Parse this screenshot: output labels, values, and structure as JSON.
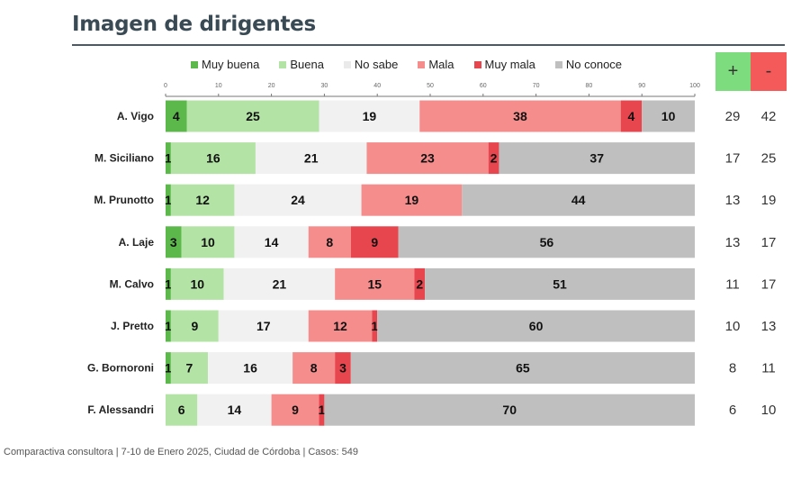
{
  "chart_data": {
    "type": "bar",
    "stacked": true,
    "orientation": "horizontal",
    "title": "Imagen de dirigentes",
    "categories": [
      "A. Vigo",
      "M. Siciliano",
      "M. Prunotto",
      "A. Laje",
      "M. Calvo",
      "J. Pretto",
      "G. Bornoroni",
      "F. Alessandri"
    ],
    "series": [
      {
        "name": "Muy buena",
        "color": "#5cb84a",
        "values": [
          4,
          1,
          1,
          3,
          1,
          1,
          1,
          0
        ]
      },
      {
        "name": "Buena",
        "color": "#b3e4a6",
        "values": [
          25,
          16,
          12,
          10,
          10,
          9,
          7,
          6
        ]
      },
      {
        "name": "No sabe",
        "color": "#f1f1f1",
        "values": [
          19,
          21,
          24,
          14,
          21,
          17,
          16,
          14
        ]
      },
      {
        "name": "Mala",
        "color": "#f58d8d",
        "values": [
          38,
          23,
          19,
          8,
          15,
          12,
          8,
          9
        ]
      },
      {
        "name": "Muy mala",
        "color": "#e8464f",
        "values": [
          4,
          2,
          0,
          9,
          2,
          1,
          3,
          1
        ]
      },
      {
        "name": "No conoce",
        "color": "#bfbfbf",
        "values": [
          10,
          37,
          44,
          56,
          51,
          60,
          65,
          70
        ]
      }
    ],
    "xlim": [
      0,
      100
    ],
    "xticks": [
      0,
      10,
      20,
      30,
      40,
      50,
      60,
      70,
      80,
      90,
      100
    ],
    "legend": "top",
    "summary": {
      "plus_label": "+",
      "minus_label": "-",
      "plus_color": "#7ddc7d",
      "minus_color": "#f55a5a",
      "plus": [
        29,
        17,
        13,
        13,
        11,
        10,
        8,
        6
      ],
      "minus": [
        42,
        25,
        19,
        17,
        17,
        13,
        11,
        10
      ]
    }
  },
  "footer": "Comparactiva consultora | 7-10 de Enero 2025, Ciudad de Córdoba | Casos: 549"
}
